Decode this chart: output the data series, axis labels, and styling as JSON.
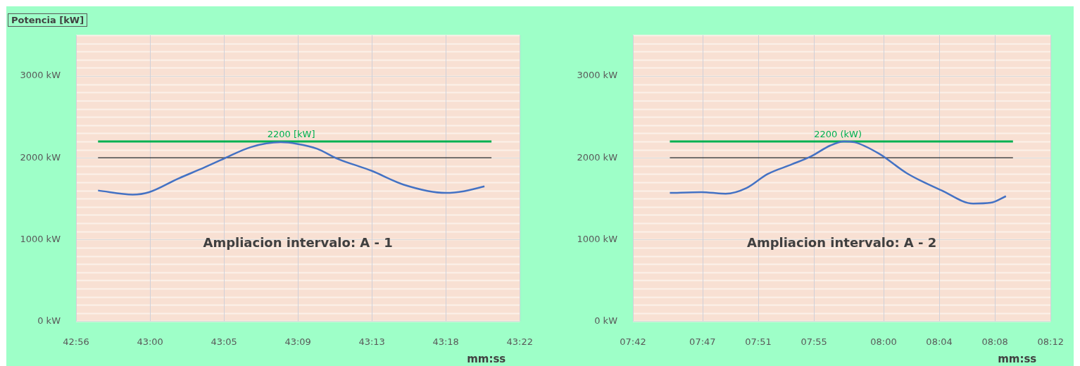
{
  "chart_data": [
    {
      "type": "line",
      "title": "Potencia [kW]",
      "xlabel": "mm:ss",
      "annotations": [
        "Ampliacion intervalo: A - 1"
      ],
      "series": [
        {
          "color": "#4472c4",
          "x": [
            42.9548,
            42.9887,
            43.0048,
            43.0322,
            43.0583,
            43.0778,
            43.1038,
            43.1332,
            43.1493,
            43.1688,
            43.1883,
            43.2222,
            43.2535,
            43.2945,
            43.312,
            43.3322
          ],
          "values": [
            1600,
            1550,
            1580,
            1740,
            1880,
            1990,
            2130,
            2190,
            2170,
            2110,
            1990,
            1840,
            1670,
            1570,
            1590,
            1650
          ]
        }
      ],
      "xlim": [
        42.9333,
        43.3667
      ],
      "xticks": [
        {
          "value": 42.9333,
          "label": "42:56"
        },
        {
          "value": 43.0056,
          "label": "43:00"
        },
        {
          "value": 43.0778,
          "label": "43:05"
        },
        {
          "value": 43.15,
          "label": "43:09"
        },
        {
          "value": 43.2222,
          "label": "43:13"
        },
        {
          "value": 43.2944,
          "label": "43:18"
        },
        {
          "value": 43.3667,
          "label": "43:22"
        }
      ],
      "ylim": [
        0,
        3500
      ],
      "yticks": [
        {
          "value": 0,
          "label": "0 kW"
        },
        {
          "value": 1000,
          "label": "1000 kW"
        },
        {
          "value": 2000,
          "label": "2000 kW"
        },
        {
          "value": 3000,
          "label": "3000 kW"
        }
      ],
      "ref_lines": [
        {
          "axis": "y",
          "value": 2200,
          "label": "2200 [kW]",
          "color": "#00b050"
        },
        {
          "axis": "y",
          "value": 2000,
          "label": null,
          "color": "#262626"
        }
      ],
      "grid": true,
      "legend": false,
      "marker": "none",
      "line_style": "solid"
    },
    {
      "type": "line",
      "xlabel": "mm:ss",
      "annotations": [
        "Ampliacion intervalo: A - 2"
      ],
      "series": [
        {
          "color": "#4472c4",
          "x": [
            7.7442,
            7.7818,
            7.811,
            7.836,
            7.861,
            7.8903,
            7.9137,
            7.9362,
            7.9528,
            7.9653,
            7.9947,
            8.028,
            8.0697,
            8.1073,
            8.1282,
            8.1465
          ],
          "values": [
            1570,
            1580,
            1560,
            1630,
            1800,
            1920,
            2020,
            2150,
            2200,
            2190,
            2050,
            1810,
            1600,
            1440,
            1450,
            1530
          ]
        }
      ],
      "xlim": [
        7.7,
        8.2
      ],
      "xticks": [
        {
          "value": 7.7,
          "label": "07:42"
        },
        {
          "value": 7.7833,
          "label": "07:47"
        },
        {
          "value": 7.85,
          "label": "07:51"
        },
        {
          "value": 7.9167,
          "label": "07:55"
        },
        {
          "value": 8.0,
          "label": "08:00"
        },
        {
          "value": 8.0667,
          "label": "08:04"
        },
        {
          "value": 8.1333,
          "label": "08:08"
        },
        {
          "value": 8.2,
          "label": "08:12"
        }
      ],
      "ylim": [
        0,
        3500
      ],
      "yticks": [
        {
          "value": 0,
          "label": "0 kW"
        },
        {
          "value": 1000,
          "label": "1000 kW"
        },
        {
          "value": 2000,
          "label": "2000 kW"
        },
        {
          "value": 3000,
          "label": "3000 kW"
        }
      ],
      "ref_lines": [
        {
          "axis": "y",
          "value": 2200,
          "label": "2200 (kW)",
          "color": "#00b050"
        },
        {
          "axis": "y",
          "value": 2000,
          "label": null,
          "color": "#262626"
        }
      ],
      "grid": true,
      "legend": false,
      "marker": "none",
      "line_style": "solid"
    }
  ]
}
